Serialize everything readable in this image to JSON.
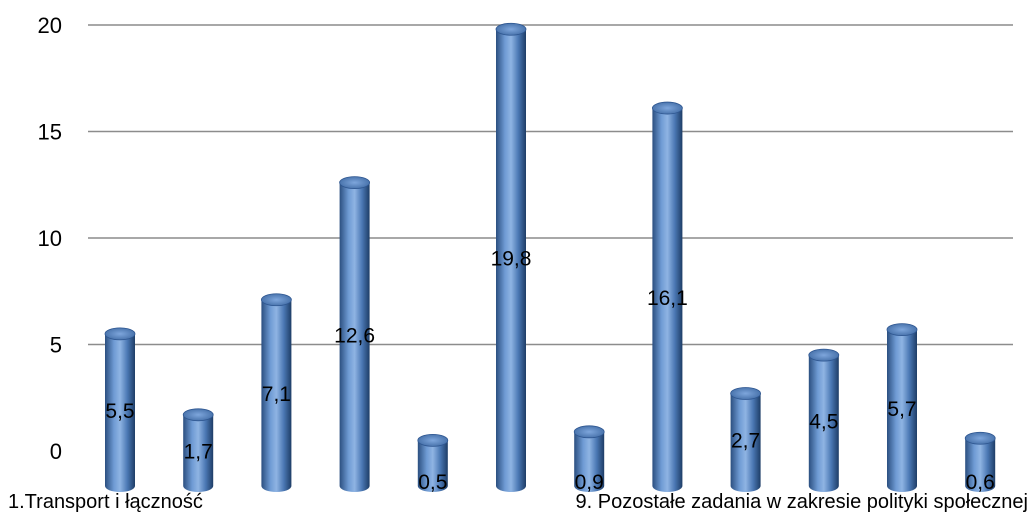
{
  "chart_data": {
    "type": "bar",
    "style": "3d-cylinder",
    "color": "#4f81bd",
    "grid": true,
    "legend": "none",
    "ylim": [
      0,
      20
    ],
    "yticks": [
      "0",
      "5",
      "10",
      "15",
      "20"
    ],
    "category_labels": [
      "1.Transport i łączność",
      "9. Pozostałe zadania w zakresie polityki społecznej"
    ],
    "values": [
      5.5,
      1.7,
      7.1,
      12.6,
      0.5,
      19.8,
      0.9,
      16.1,
      2.7,
      4.5,
      5.7,
      0.6
    ],
    "value_labels": [
      "5,5",
      "1,7",
      "7,1",
      "12,6",
      "0,5",
      "19,8",
      "0,9",
      "16,1",
      "2,7",
      "4,5",
      "5,7",
      "0,6"
    ]
  }
}
